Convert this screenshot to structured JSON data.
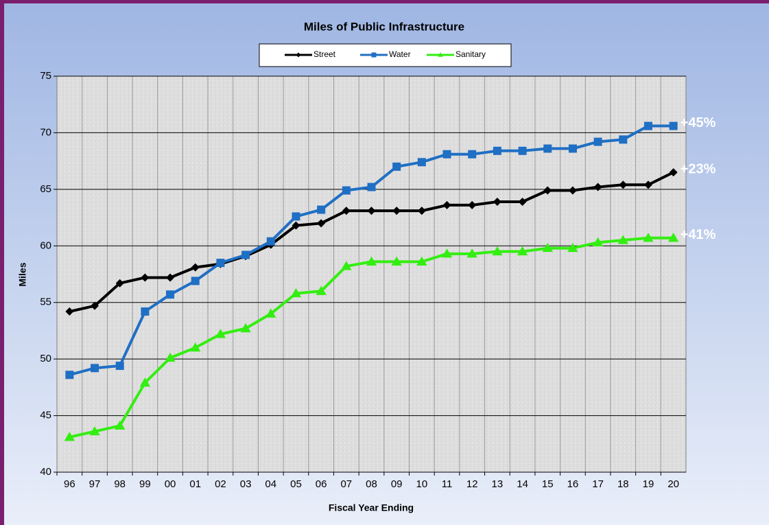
{
  "chart_data": {
    "type": "line",
    "title": "Miles of Public Infrastructure",
    "x_label": "Fiscal Year Ending",
    "y_label": "Miles",
    "categories": [
      "96",
      "97",
      "98",
      "99",
      "00",
      "01",
      "02",
      "03",
      "04",
      "05",
      "06",
      "07",
      "08",
      "09",
      "10",
      "11",
      "12",
      "13",
      "14",
      "15",
      "16",
      "17",
      "18",
      "19",
      "20"
    ],
    "series": [
      {
        "name": "Street",
        "color": "#000000",
        "marker": "diamond",
        "annotation": "+23%",
        "values": [
          54.2,
          54.7,
          56.7,
          57.2,
          57.2,
          58.1,
          58.4,
          59.1,
          60.1,
          61.8,
          62.0,
          63.1,
          63.1,
          63.1,
          63.1,
          63.6,
          63.6,
          63.9,
          63.9,
          64.9,
          64.9,
          65.2,
          65.4,
          65.4,
          66.5
        ]
      },
      {
        "name": "Water",
        "color": "#1f6fc4",
        "marker": "square",
        "annotation": "+45%",
        "values": [
          48.6,
          49.2,
          49.4,
          54.2,
          55.7,
          56.9,
          58.5,
          59.2,
          60.4,
          62.6,
          63.2,
          64.9,
          65.2,
          67.0,
          67.4,
          68.1,
          68.1,
          68.4,
          68.4,
          68.6,
          68.6,
          69.2,
          69.4,
          70.6,
          70.6
        ]
      },
      {
        "name": "Sanitary",
        "color": "#33ee11",
        "marker": "triangle",
        "annotation": "+41%",
        "values": [
          43.1,
          43.6,
          44.1,
          47.9,
          50.1,
          51.0,
          52.2,
          52.7,
          54.0,
          55.8,
          56.0,
          58.2,
          58.6,
          58.6,
          58.6,
          59.3,
          59.3,
          59.5,
          59.5,
          59.8,
          59.8,
          60.3,
          60.5,
          60.7,
          60.7
        ]
      }
    ],
    "ylim": [
      40,
      75
    ],
    "yticks": [
      40,
      45,
      50,
      55,
      60,
      65,
      70,
      75
    ],
    "grid": true,
    "legend": "top"
  }
}
